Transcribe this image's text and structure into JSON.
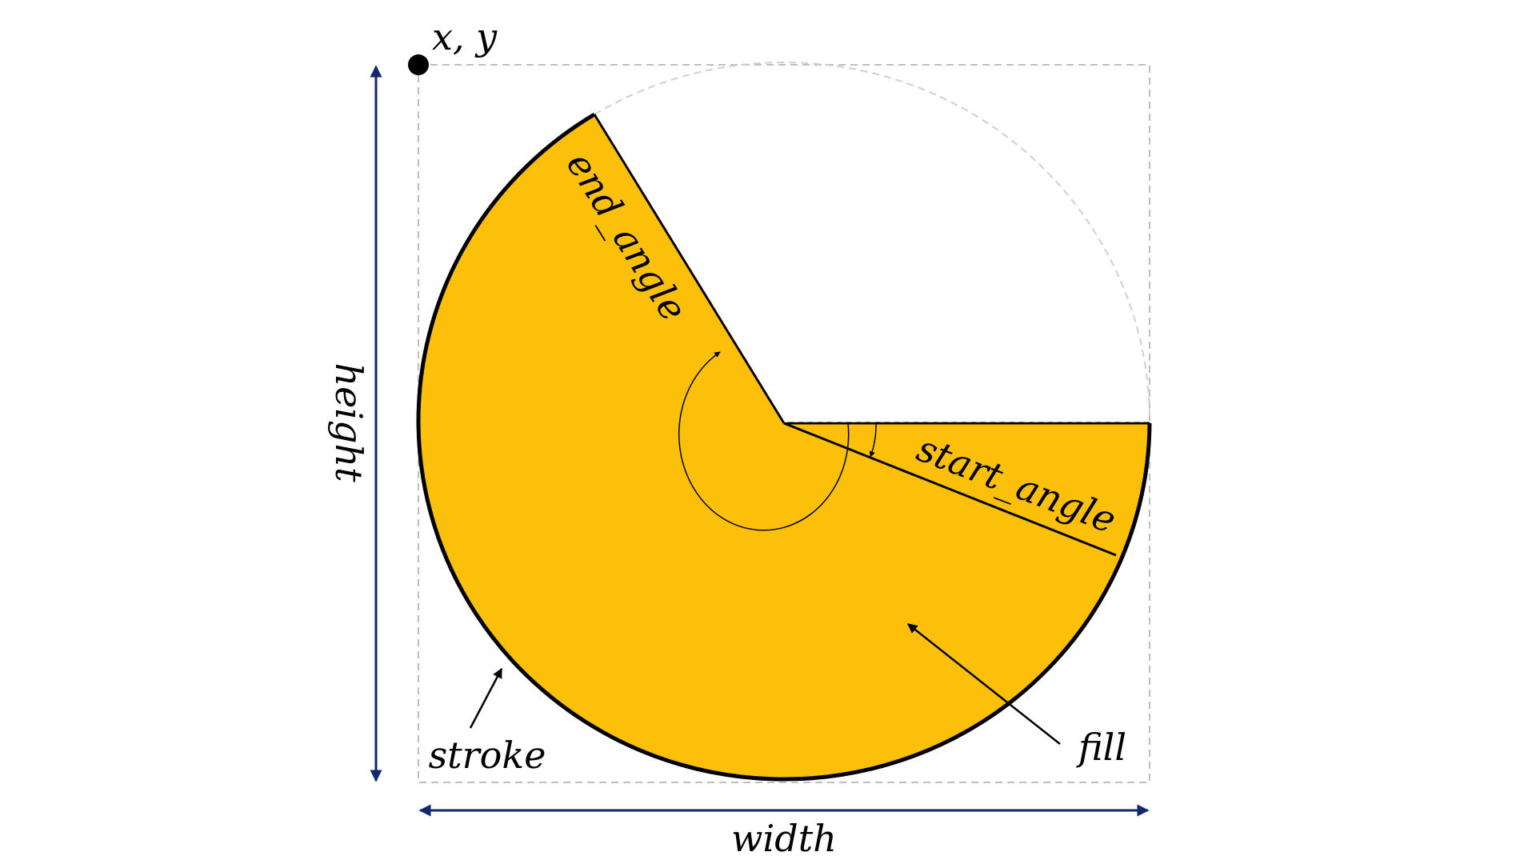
{
  "labels": {
    "origin": "x, y",
    "height": "height",
    "width": "width",
    "end_angle": "end_angle",
    "start_angle": "start_angle",
    "stroke": "stroke",
    "fill": "fill"
  },
  "colors": {
    "fill": "#FDC00A",
    "stroke": "#000000",
    "dimension_arrows": "#12286A",
    "guides": "#BFBFBF",
    "annotation": "#000000"
  },
  "arc": {
    "start_angle_deg": 0,
    "end_angle_deg": 240,
    "direction": "clockwise"
  }
}
